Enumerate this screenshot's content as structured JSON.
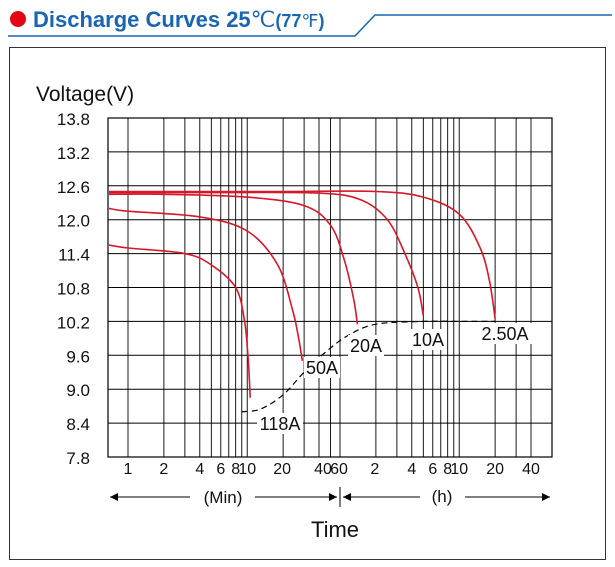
{
  "header": {
    "title": "Discharge Curves 25",
    "temp_c": "℃",
    "temp_f_open": "(77",
    "temp_f_unit": "℉",
    "temp_f_close": ")",
    "accent_color": "#e30613",
    "title_color": "#1a65b3"
  },
  "chart_data": {
    "type": "line",
    "ylabel": "Voltage(V)",
    "xlabel": "Time",
    "ylim": [
      7.8,
      13.8
    ],
    "y_ticks": [
      "13.8",
      "13.2",
      "12.6",
      "12.0",
      "11.4",
      "10.8",
      "10.2",
      "9.6",
      "9.0",
      "8.4",
      "7.8"
    ],
    "x_ticks_min": [
      "1",
      "2",
      "4",
      "6",
      "8",
      "10",
      "20",
      "40",
      "60"
    ],
    "x_ticks_h": [
      "2",
      "4",
      "6",
      "8",
      "10",
      "20",
      "40"
    ],
    "x_range_min_label": "(Min)",
    "x_range_h_label": "(h)",
    "x_scale": "log",
    "grid": true,
    "series": [
      {
        "name": "118A",
        "x_min": [
          0.35,
          1,
          3,
          5,
          8,
          9.5,
          10.2,
          10.6
        ],
        "y": [
          11.55,
          11.5,
          11.4,
          11.2,
          10.8,
          10.2,
          9.5,
          8.85
        ]
      },
      {
        "name": "50A",
        "x_min": [
          0.35,
          1,
          4,
          10,
          18,
          24,
          27,
          29
        ],
        "y": [
          12.2,
          12.15,
          12.05,
          11.8,
          11.2,
          10.4,
          9.9,
          9.5
        ]
      },
      {
        "name": "20A",
        "x_min": [
          0.35,
          2,
          10,
          30,
          50,
          65,
          78,
          84
        ],
        "y": [
          12.45,
          12.45,
          12.4,
          12.25,
          11.9,
          11.3,
          10.6,
          10.15
        ]
      },
      {
        "name": "10A",
        "x_min": [
          0.35,
          5,
          40,
          90,
          150,
          210,
          270,
          300
        ],
        "y": [
          12.48,
          12.48,
          12.47,
          12.35,
          12.0,
          11.4,
          10.8,
          10.3
        ]
      },
      {
        "name": "2.50A",
        "x_min": [
          0.35,
          20,
          120,
          300,
          600,
          900,
          1080,
          1200
        ],
        "y": [
          12.5,
          12.5,
          12.5,
          12.4,
          12.1,
          11.5,
          10.9,
          10.25
        ]
      }
    ],
    "end_voltage_curve": {
      "x_min": [
        9,
        13,
        20,
        30,
        45,
        70,
        120,
        300,
        600,
        1200
      ],
      "y": [
        8.6,
        8.65,
        8.9,
        9.3,
        9.65,
        9.95,
        10.15,
        10.2,
        10.2,
        10.2
      ]
    },
    "colors": {
      "curve": "#d7182a",
      "grid": "#000000",
      "text": "#111111"
    }
  }
}
